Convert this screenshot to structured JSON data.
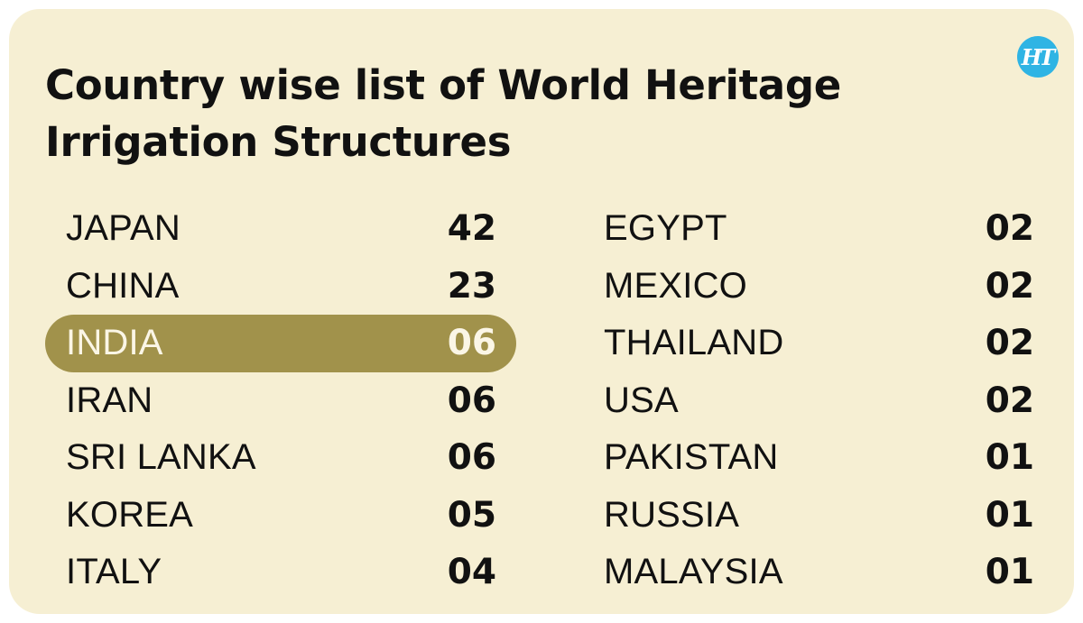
{
  "logo": {
    "text": "HT",
    "color": "#2fb4e4"
  },
  "title": "Country wise list of World Heritage Irrigation Structures",
  "colors": {
    "background": "#f6efd3",
    "highlight": "#a1924b",
    "text": "#111111"
  },
  "left_column": [
    {
      "country": "JAPAN",
      "count": "42"
    },
    {
      "country": "CHINA",
      "count": "23"
    },
    {
      "country": "INDIA",
      "count": "06",
      "highlighted": true
    },
    {
      "country": "IRAN",
      "count": "06"
    },
    {
      "country": "SRI LANKA",
      "count": "06"
    },
    {
      "country": "KOREA",
      "count": "05"
    },
    {
      "country": "ITALY",
      "count": "04"
    }
  ],
  "right_column": [
    {
      "country": "EGYPT",
      "count": "02"
    },
    {
      "country": "MEXICO",
      "count": "02"
    },
    {
      "country": "THAILAND",
      "count": "02"
    },
    {
      "country": "USA",
      "count": "02"
    },
    {
      "country": "PAKISTAN",
      "count": "01"
    },
    {
      "country": "RUSSIA",
      "count": "01"
    },
    {
      "country": "MALAYSIA",
      "count": "01"
    }
  ]
}
